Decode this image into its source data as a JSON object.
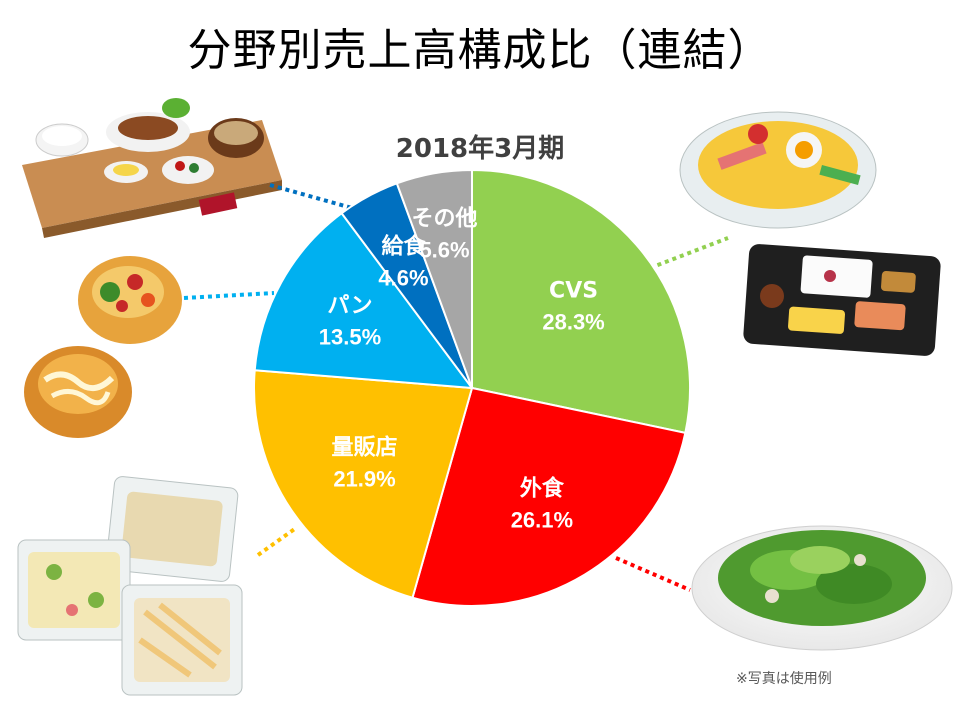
{
  "title": "分野別売上高構成比（連結）",
  "subtitle": "2018年3月期",
  "note": "※写真は使用例",
  "chart_data": {
    "type": "pie",
    "title": "分野別売上高構成比（連結）",
    "subtitle": "2018年3月期",
    "start": "12 o'clock, clockwise",
    "slices": [
      {
        "label": "CVS",
        "value": 28.3,
        "display": "28.3%",
        "color": "#92D050"
      },
      {
        "label": "外食",
        "value": 26.1,
        "display": "26.1%",
        "color": "#FF0000"
      },
      {
        "label": "量販店",
        "value": 21.9,
        "display": "21.9%",
        "color": "#FFC000"
      },
      {
        "label": "パン",
        "value": 13.5,
        "display": "13.5%",
        "color": "#00B0F0"
      },
      {
        "label": "給食",
        "value": 4.6,
        "display": "4.6%",
        "color": "#0070C0"
      },
      {
        "label": "その他",
        "value": 5.6,
        "display": "5.6%",
        "color": "#A6A6A6"
      }
    ]
  }
}
